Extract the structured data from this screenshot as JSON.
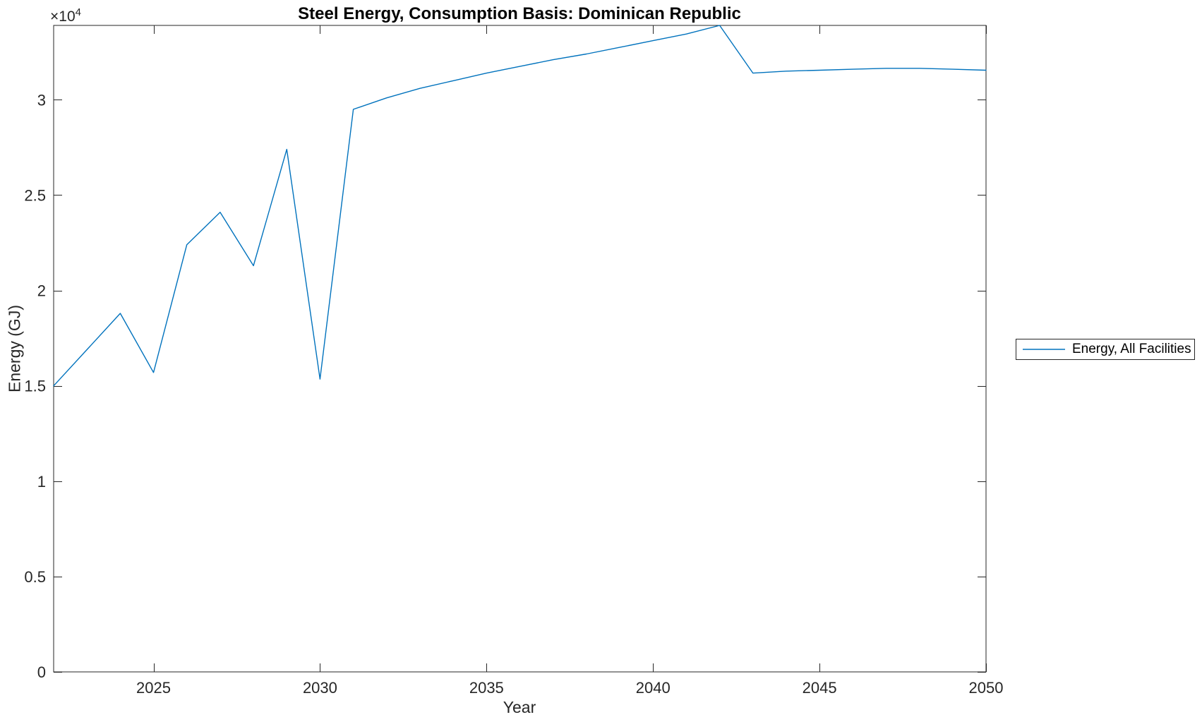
{
  "figure": {
    "background": "#ffffff"
  },
  "chart_data": {
    "type": "line",
    "title": "Steel Energy, Consumption Basis: Dominican Republic",
    "xlabel": "Year",
    "ylabel": "Energy (GJ)",
    "y_offset_label": {
      "base": "×10",
      "exponent": "4"
    },
    "xlim": [
      2022,
      2050
    ],
    "ylim": [
      0,
      33900
    ],
    "xticks": [
      2025,
      2030,
      2035,
      2040,
      2045,
      2050
    ],
    "xtick_labels": [
      "2025",
      "2030",
      "2035",
      "2040",
      "2045",
      "2050"
    ],
    "yticks": [
      0,
      5000,
      10000,
      15000,
      20000,
      25000,
      30000
    ],
    "ytick_labels": [
      "0",
      "0.5",
      "1",
      "1.5",
      "2",
      "2.5",
      "3"
    ],
    "grid": false,
    "box": true,
    "tick_direction": "in",
    "axis_color": "#262626",
    "legend": {
      "position": "right-outside",
      "entries": [
        "Energy, All Facilities"
      ]
    },
    "x": [
      2022,
      2023,
      2024,
      2025,
      2026,
      2027,
      2028,
      2029,
      2030,
      2031,
      2032,
      2033,
      2034,
      2035,
      2036,
      2037,
      2038,
      2039,
      2040,
      2041,
      2042,
      2043,
      2044,
      2045,
      2046,
      2047,
      2048,
      2049,
      2050
    ],
    "series": [
      {
        "name": "Energy, All Facilities",
        "color": "#0072BD",
        "values": [
          15000,
          16900,
          18800,
          15700,
          22400,
          24100,
          21300,
          27400,
          15350,
          29500,
          30100,
          30600,
          31000,
          31400,
          31750,
          32100,
          32400,
          32750,
          33100,
          33450,
          33900,
          31400,
          31500,
          31550,
          31600,
          31650,
          31650,
          31600,
          31550
        ]
      }
    ]
  }
}
